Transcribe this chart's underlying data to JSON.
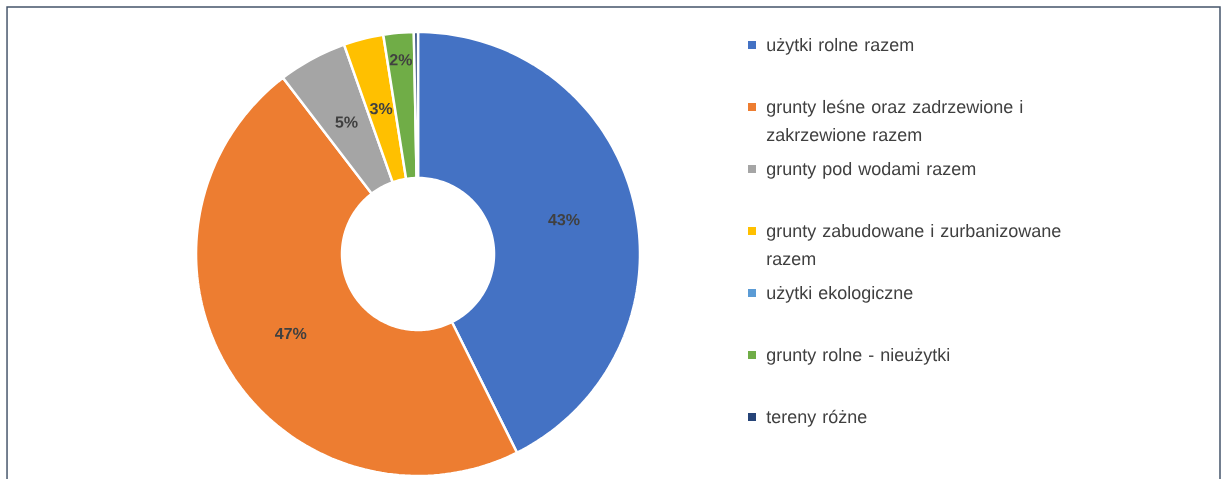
{
  "chart_data": {
    "type": "donut",
    "legend": "right",
    "categories": [
      "użytki rolne razem",
      "grunty leśne oraz zadrzewione i zakrzewione razem",
      "grunty pod wodami razem",
      "grunty zabudowane i zurbanizowane razem",
      "użytki ekologiczne",
      "grunty rolne - nieużytki",
      "tereny różne"
    ],
    "values": [
      42.6,
      46.9,
      5.0,
      2.9,
      null,
      2.2,
      0.3
    ],
    "value_labels": [
      "43%",
      "47%",
      "5%",
      "3%",
      null,
      "2%",
      null
    ],
    "colors": [
      "#4472c4",
      "#ed7d31",
      "#a5a5a5",
      "#ffc000",
      "#5b9bd5",
      "#70ad47",
      "#264478"
    ]
  }
}
